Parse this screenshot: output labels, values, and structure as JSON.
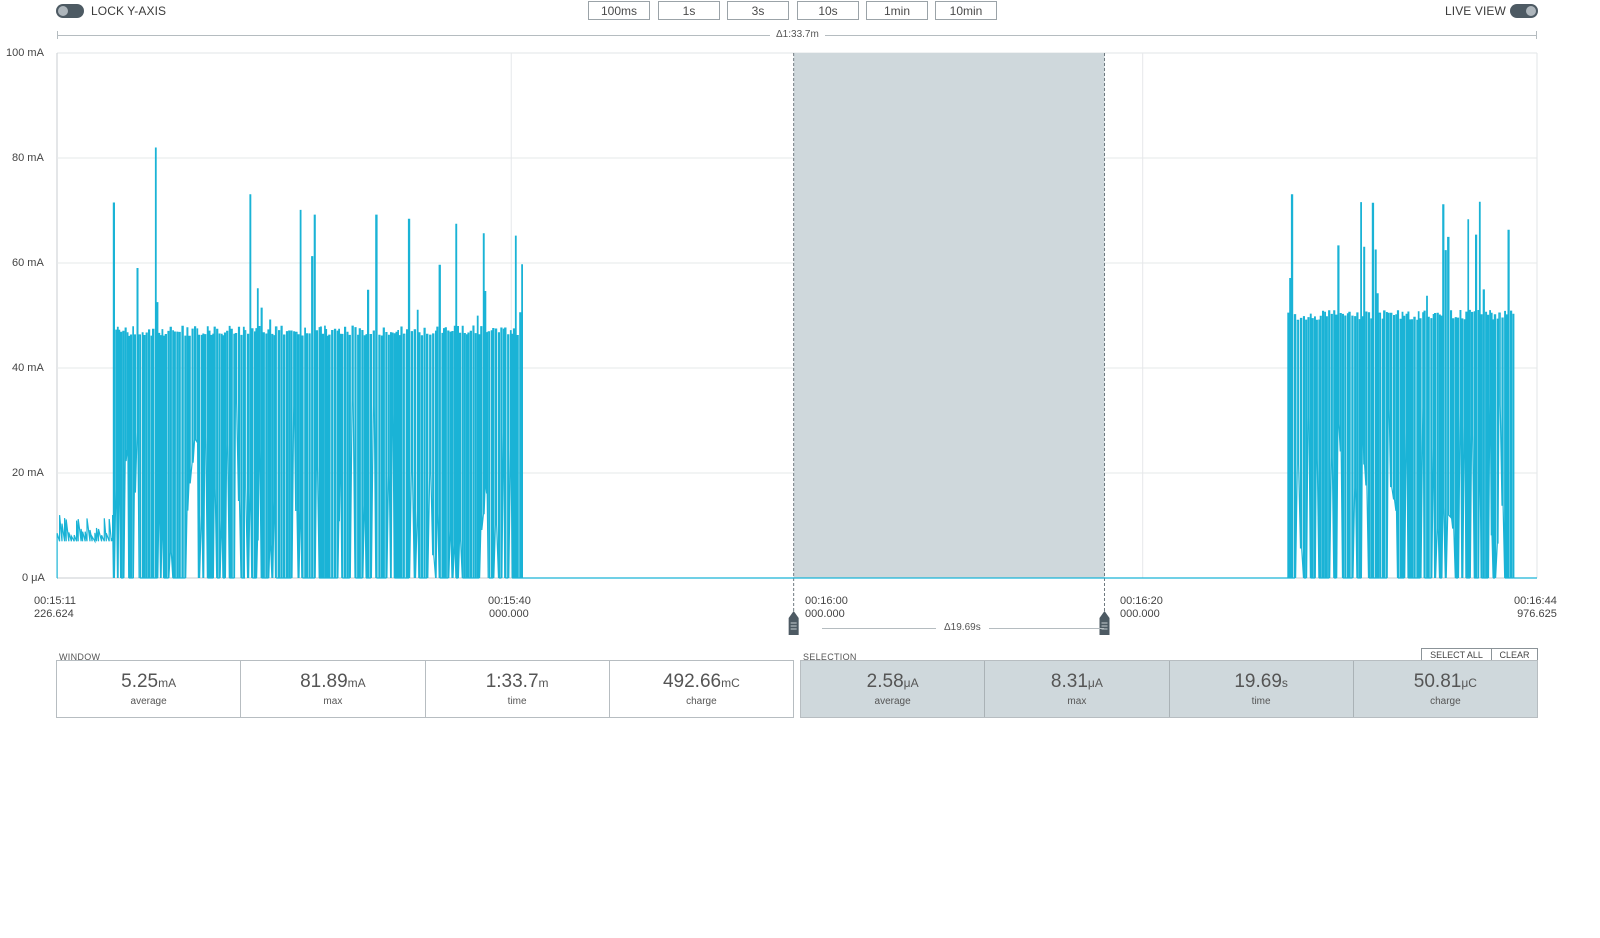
{
  "top_bar": {
    "lock_y_axis_label": "LOCK Y-AXIS",
    "live_view_label": "LIVE VIEW",
    "window_buttons": [
      "100ms",
      "1s",
      "3s",
      "10s",
      "1min",
      "10min"
    ],
    "window_delta": "Δ1:33.7m"
  },
  "chart": {
    "y_ticks": [
      "100 mA",
      "80 mA",
      "60 mA",
      "40 mA",
      "20 mA",
      "0 μA"
    ],
    "x_ticks": [
      {
        "time": "00:15:11",
        "sub": "226.624"
      },
      {
        "time": "00:15:40",
        "sub": "000.000"
      },
      {
        "time": "00:16:00",
        "sub": "000.000"
      },
      {
        "time": "00:16:20",
        "sub": "000.000"
      },
      {
        "time": "00:16:44",
        "sub": "976.625"
      }
    ],
    "selection_delta": "Δ19.69s",
    "line_color": "#1ab3d6",
    "selection_color": "#cfd8dc"
  },
  "window_stats": {
    "title": "WINDOW",
    "items": [
      {
        "value": "5.25",
        "unit": "mA",
        "caption": "average"
      },
      {
        "value": "81.89",
        "unit": "mA",
        "caption": "max"
      },
      {
        "value": "1:33.7",
        "unit": "m",
        "caption": "time"
      },
      {
        "value": "492.66",
        "unit": "mC",
        "caption": "charge"
      }
    ]
  },
  "selection_stats": {
    "title": "SELECTION",
    "select_all_label": "SELECT ALL",
    "clear_label": "CLEAR",
    "items": [
      {
        "value": "2.58",
        "unit": "μA",
        "caption": "average"
      },
      {
        "value": "8.31",
        "unit": "μA",
        "caption": "max"
      },
      {
        "value": "19.69",
        "unit": "s",
        "caption": "time"
      },
      {
        "value": "50.81",
        "unit": "μC",
        "caption": "charge"
      }
    ]
  },
  "chart_data": {
    "type": "line",
    "y_unit": "mA",
    "ylim": [
      0,
      100
    ],
    "xlim": [
      "00:15:11.226624",
      "00:16:44.976625"
    ],
    "grid": true,
    "selection_range": [
      "00:15:57.89",
      "00:16:17.58"
    ],
    "series": [
      {
        "bursts": [
          {
            "start": "00:15:11.23",
            "end": "00:15:14.8",
            "baseline": 7,
            "peak": 12
          },
          {
            "start": "00:15:14.8",
            "end": "00:15:23.1",
            "baseline": 0,
            "plateau": 48,
            "peak": 81.89
          },
          {
            "start": "00:15:23.1",
            "end": "00:15:26.5",
            "baseline": 0,
            "plateau": 48,
            "peak": 73
          },
          {
            "start": "00:15:26.5",
            "end": "00:15:40.7",
            "baseline": 0,
            "plateau": 48,
            "peak": 70
          },
          {
            "start": "00:16:29.2",
            "end": "00:16:43.5",
            "baseline": 0,
            "plateau": 51,
            "peak": 73
          }
        ],
        "idle_value": 0
      }
    ]
  }
}
